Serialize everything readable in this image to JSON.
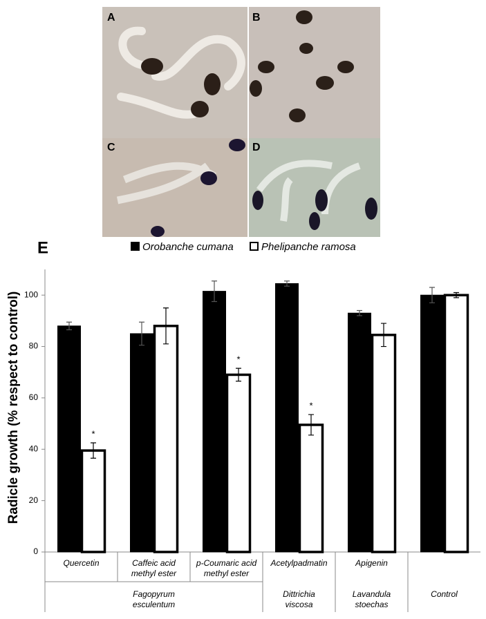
{
  "figure": {
    "panels": [
      {
        "label": "A"
      },
      {
        "label": "B"
      },
      {
        "label": "C"
      },
      {
        "label": "D"
      }
    ],
    "chart_label": "E"
  },
  "chart_data": {
    "type": "bar",
    "ylabel": "Radicle growth (% respect to control)",
    "categories": [
      "Quercetin",
      "Caffeic acid methyl ester",
      "p-Coumaric acid methyl ester",
      "Acetylpadmatin",
      "Apigenin",
      null
    ],
    "groups": [
      {
        "name": "Fagopyrum esculentum",
        "categories": [
          0,
          1,
          2
        ]
      },
      {
        "name": "Dittrichia viscosa",
        "categories": [
          3
        ]
      },
      {
        "name": "Lavandula stoechas",
        "categories": [
          4
        ]
      },
      {
        "name": "Control",
        "categories": [
          5
        ]
      }
    ],
    "series": [
      {
        "name": "Orobanche cumana",
        "color": "#000000",
        "values": [
          88,
          85,
          101.5,
          104.5,
          93,
          100
        ],
        "errors": [
          1.5,
          4.5,
          4,
          1,
          1,
          3
        ]
      },
      {
        "name": "Phelipanche ramosa",
        "color": "#ffffff",
        "values": [
          39.5,
          88,
          69,
          49.5,
          84.5,
          100
        ],
        "errors": [
          3,
          7,
          2.5,
          4,
          4.5,
          1
        ],
        "significance": [
          "*",
          null,
          "*",
          "*",
          null,
          null
        ]
      }
    ],
    "ylim": [
      0,
      110
    ],
    "yticks": [
      0,
      20,
      40,
      60,
      80,
      100
    ],
    "grid": false
  }
}
